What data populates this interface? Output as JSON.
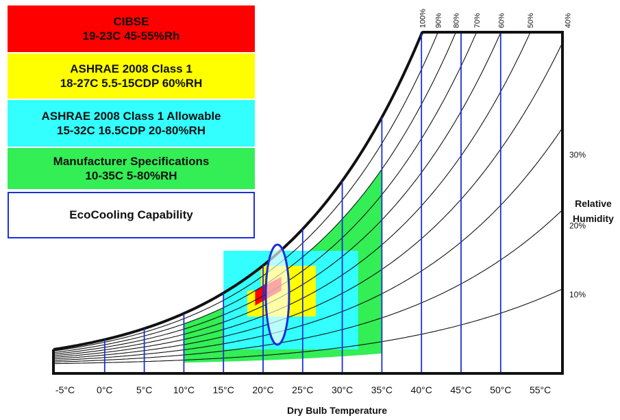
{
  "legend": {
    "cibse": {
      "line1": "CIBSE",
      "line2": "19-23C 45-55%Rh",
      "color": "#ff0000"
    },
    "ashrae_class1": {
      "line1": "ASHRAE 2008 Class 1",
      "line2": "18-27C 5.5-15CDP 60%RH",
      "color": "#ffff00"
    },
    "ashrae_allowable": {
      "line1": "ASHRAE 2008 Class 1 Allowable",
      "line2": "15-32C  16.5CDP  20-80%RH",
      "color": "#33ffff"
    },
    "manufacturer": {
      "line1": "Manufacturer Specifications",
      "line2": "10-35C   5-80%RH",
      "color": "#33ee55"
    },
    "ecocooling": {
      "line1": "EcoCooling Capability",
      "border_color": "#1a2fd6"
    }
  },
  "chart_data": {
    "type": "psychrometric",
    "x_axis": {
      "title": "Dry Bulb Temperature",
      "ticks": [
        {
          "value": -5,
          "label": "-5°C"
        },
        {
          "value": 0,
          "label": "0°C"
        },
        {
          "value": 5,
          "label": "5°C"
        },
        {
          "value": 10,
          "label": "10°C"
        },
        {
          "value": 15,
          "label": "15°C"
        },
        {
          "value": 20,
          "label": "20°C"
        },
        {
          "value": 25,
          "label": "25°C"
        },
        {
          "value": 30,
          "label": "30°C"
        },
        {
          "value": 35,
          "label": "35°C"
        },
        {
          "value": 40,
          "label": "40°C"
        },
        {
          "value": 45,
          "label": "45°C"
        },
        {
          "value": 50,
          "label": "50°C"
        },
        {
          "value": 55,
          "label": "55°C"
        }
      ]
    },
    "rh_axis": {
      "title_line1": "Relative",
      "title_line2": "Humidity",
      "top_labels": [
        {
          "rh": 100,
          "label": "100%"
        },
        {
          "rh": 90,
          "label": "90%"
        },
        {
          "rh": 80,
          "label": "80%"
        },
        {
          "rh": 70,
          "label": "70%"
        },
        {
          "rh": 60,
          "label": "60%"
        },
        {
          "rh": 50,
          "label": "50%"
        },
        {
          "rh": 40,
          "label": "40%"
        }
      ],
      "side_labels": [
        {
          "rh": 30,
          "label": "30%"
        },
        {
          "rh": 20,
          "label": "20%"
        },
        {
          "rh": 10,
          "label": "10%"
        }
      ],
      "curves_rh": [
        100,
        90,
        80,
        70,
        60,
        50,
        40,
        30,
        20,
        10
      ]
    },
    "t_range": [
      -5,
      55
    ],
    "regions": [
      {
        "name": "Manufacturer Specifications",
        "t_min": 10,
        "t_max": 35,
        "rh_min": 5,
        "rh_max": 80,
        "color": "#33ee55"
      },
      {
        "name": "ASHRAE 2008 Class 1 Allowable",
        "t_min": 15,
        "t_max": 32,
        "rh_min": 20,
        "rh_max": 80,
        "color": "#33ffff"
      },
      {
        "name": "ASHRAE 2008 Class 1",
        "t_min": 18,
        "t_max": 27,
        "rh_max": 60,
        "color": "#ffff00"
      },
      {
        "name": "CIBSE",
        "t_min": 19,
        "t_max": 23,
        "rh_min": 45,
        "rh_max": 55,
        "color": "#ff0000"
      },
      {
        "name": "EcoCooling Capability",
        "shape": "ellipse",
        "t_center": 21.5,
        "t_halfwidth": 1.5,
        "color": "#1a2fd6"
      }
    ]
  }
}
